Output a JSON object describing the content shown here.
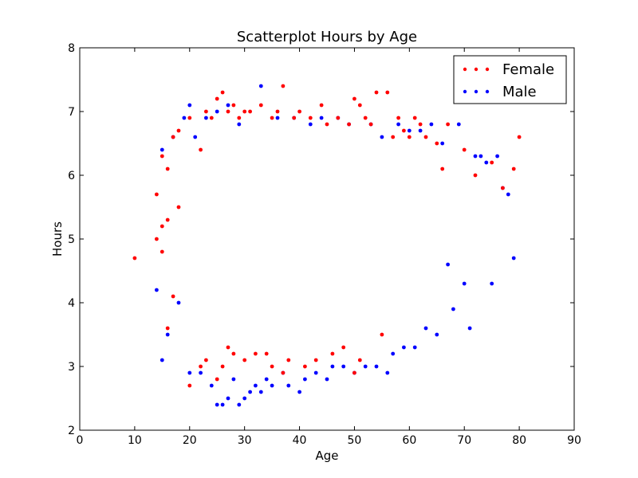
{
  "chart_data": {
    "type": "scatter",
    "title": "Scatterplot Hours by Age",
    "xlabel": "Age",
    "ylabel": "Hours",
    "xlim": [
      0,
      90
    ],
    "ylim": [
      2,
      8
    ],
    "xticks": [
      0,
      10,
      20,
      30,
      40,
      50,
      60,
      70,
      80,
      90
    ],
    "yticks": [
      2,
      3,
      4,
      5,
      6,
      7,
      8
    ],
    "grid": false,
    "legend_position": "top-right",
    "series": [
      {
        "name": "Female",
        "color": "#ff0000",
        "x": [
          10,
          14,
          14,
          15,
          15,
          15,
          16,
          16,
          16,
          17,
          17,
          18,
          18,
          20,
          20,
          22,
          22,
          23,
          23,
          24,
          25,
          25,
          26,
          26,
          27,
          27,
          28,
          28,
          29,
          30,
          30,
          31,
          32,
          33,
          34,
          35,
          35,
          36,
          37,
          37,
          38,
          39,
          40,
          41,
          42,
          43,
          44,
          45,
          46,
          47,
          48,
          49,
          50,
          50,
          51,
          51,
          52,
          53,
          54,
          55,
          56,
          57,
          58,
          59,
          60,
          61,
          62,
          63,
          65,
          66,
          67,
          70,
          72,
          75,
          77,
          79,
          80
        ],
        "y": [
          4.7,
          5.7,
          5.0,
          6.3,
          4.8,
          5.2,
          6.1,
          5.3,
          3.6,
          6.6,
          4.1,
          6.7,
          5.5,
          2.7,
          6.9,
          3.0,
          6.4,
          7.0,
          3.1,
          6.9,
          2.8,
          7.2,
          7.3,
          3.0,
          7.0,
          3.3,
          7.1,
          3.2,
          6.9,
          3.1,
          7.0,
          7.0,
          3.2,
          7.1,
          3.2,
          6.9,
          3.0,
          7.0,
          7.4,
          2.9,
          3.1,
          6.9,
          7.0,
          3.0,
          6.9,
          3.1,
          7.1,
          6.8,
          3.2,
          6.9,
          3.3,
          6.8,
          7.2,
          2.9,
          7.1,
          3.1,
          6.9,
          6.8,
          7.3,
          3.5,
          7.3,
          6.6,
          6.9,
          6.7,
          6.6,
          6.9,
          6.8,
          6.6,
          6.5,
          6.1,
          6.8,
          6.4,
          6.0,
          6.2,
          5.8,
          6.1,
          6.6
        ]
      },
      {
        "name": "Male",
        "color": "#0000ff",
        "x": [
          14,
          15,
          15,
          16,
          17,
          18,
          19,
          20,
          20,
          21,
          22,
          23,
          24,
          25,
          25,
          26,
          27,
          27,
          28,
          29,
          29,
          30,
          31,
          32,
          33,
          33,
          34,
          35,
          36,
          37,
          38,
          39,
          40,
          41,
          42,
          43,
          44,
          45,
          46,
          47,
          48,
          49,
          50,
          52,
          53,
          54,
          55,
          56,
          57,
          58,
          59,
          60,
          61,
          62,
          63,
          64,
          65,
          66,
          67,
          68,
          69,
          70,
          71,
          72,
          73,
          74,
          75,
          76,
          77,
          78,
          79
        ],
        "y": [
          4.2,
          6.4,
          3.1,
          3.5,
          6.6,
          4.0,
          6.9,
          2.9,
          7.1,
          6.6,
          2.9,
          6.9,
          2.7,
          2.4,
          7.0,
          2.4,
          2.5,
          7.1,
          2.8,
          2.4,
          6.8,
          2.5,
          2.6,
          2.7,
          7.4,
          2.6,
          2.8,
          2.7,
          6.9,
          2.9,
          2.7,
          6.9,
          2.6,
          2.8,
          6.8,
          2.9,
          6.9,
          2.8,
          3.0,
          6.9,
          3.0,
          6.8,
          2.9,
          3.0,
          6.8,
          3.0,
          6.6,
          2.9,
          3.2,
          6.8,
          3.3,
          6.7,
          3.3,
          6.7,
          3.6,
          6.8,
          3.5,
          6.5,
          4.6,
          3.9,
          6.8,
          4.3,
          3.6,
          6.3,
          6.3,
          6.2,
          4.3,
          6.3,
          5.8,
          5.7,
          4.7
        ]
      }
    ]
  }
}
